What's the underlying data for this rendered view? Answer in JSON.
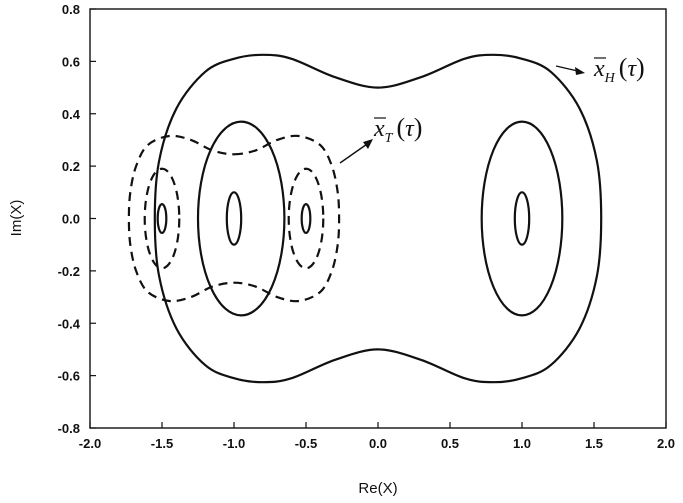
{
  "chart_data": {
    "type": "line",
    "xlabel": "Re(X)",
    "ylabel": "Im(X)",
    "xlim": [
      -2.0,
      2.0
    ],
    "ylim": [
      -0.8,
      0.8
    ],
    "x_ticks": [
      "-2.0",
      "-1.5",
      "-1.0",
      "-0.5",
      "0.0",
      "0.5",
      "1.0",
      "1.5",
      "2.0"
    ],
    "y_ticks": [
      "-0.8",
      "-0.6",
      "-0.4",
      "-0.2",
      "0.0",
      "0.2",
      "0.4",
      "0.6",
      "0.8"
    ],
    "grid": false,
    "annotations": [
      {
        "symbol": "x",
        "subscript": "H",
        "argument": "τ",
        "points_to": "outer solid contour"
      },
      {
        "symbol": "x",
        "subscript": "T",
        "argument": "τ",
        "points_to": "dashed contour near -0.5"
      }
    ],
    "series": [
      {
        "style": "solid",
        "contours": [
          {
            "kind": "ellipse",
            "center": [
              -1.0,
              0.0
            ],
            "rx": 0.05,
            "ry": 0.1
          },
          {
            "kind": "ellipse",
            "center": [
              -1.5,
              0.0
            ],
            "rx": 0.03,
            "ry": 0.055
          },
          {
            "kind": "ellipse",
            "center": [
              -0.5,
              0.0
            ],
            "rx": 0.03,
            "ry": 0.055
          },
          {
            "kind": "ellipse",
            "center": [
              1.0,
              0.0
            ],
            "rx": 0.05,
            "ry": 0.1
          },
          {
            "kind": "ellipse",
            "center": [
              1.0,
              0.0
            ],
            "rx": 0.28,
            "ry": 0.37
          },
          {
            "kind": "ellipse",
            "center": [
              -0.95,
              0.0
            ],
            "rx": 0.3,
            "ry": 0.37
          },
          {
            "kind": "polyline",
            "points": [
              [
                0.0,
                0.5
              ],
              [
                0.3,
                0.54
              ],
              [
                0.6,
                0.61
              ],
              [
                0.8,
                0.625
              ],
              [
                1.0,
                0.61
              ],
              [
                1.2,
                0.56
              ],
              [
                1.4,
                0.42
              ],
              [
                1.52,
                0.22
              ],
              [
                1.55,
                0.0
              ],
              [
                1.52,
                -0.22
              ],
              [
                1.4,
                -0.42
              ],
              [
                1.2,
                -0.56
              ],
              [
                1.0,
                -0.61
              ],
              [
                0.8,
                -0.625
              ],
              [
                0.6,
                -0.61
              ],
              [
                0.3,
                -0.54
              ],
              [
                0.0,
                -0.5
              ],
              [
                -0.3,
                -0.54
              ],
              [
                -0.6,
                -0.61
              ],
              [
                -0.8,
                -0.625
              ],
              [
                -1.0,
                -0.61
              ],
              [
                -1.2,
                -0.56
              ],
              [
                -1.4,
                -0.42
              ],
              [
                -1.52,
                -0.22
              ],
              [
                -1.55,
                0.0
              ],
              [
                -1.52,
                0.22
              ],
              [
                -1.4,
                0.42
              ],
              [
                -1.2,
                0.56
              ],
              [
                -1.0,
                0.61
              ],
              [
                -0.8,
                0.625
              ],
              [
                -0.6,
                0.61
              ],
              [
                -0.3,
                0.54
              ],
              [
                0.0,
                0.5
              ]
            ]
          }
        ]
      },
      {
        "style": "dashed",
        "contours": [
          {
            "kind": "ellipse",
            "center": [
              -1.5,
              0.0
            ],
            "rx": 0.12,
            "ry": 0.19
          },
          {
            "kind": "ellipse",
            "center": [
              -0.5,
              0.0
            ],
            "rx": 0.12,
            "ry": 0.19
          },
          {
            "kind": "polyline",
            "points": [
              [
                -1.0,
                0.245
              ],
              [
                -0.85,
                0.26
              ],
              [
                -0.7,
                0.3
              ],
              [
                -0.55,
                0.315
              ],
              [
                -0.4,
                0.28
              ],
              [
                -0.32,
                0.2
              ],
              [
                -0.28,
                0.1
              ],
              [
                -0.27,
                0.0
              ],
              [
                -0.28,
                -0.1
              ],
              [
                -0.32,
                -0.2
              ],
              [
                -0.4,
                -0.28
              ],
              [
                -0.55,
                -0.315
              ],
              [
                -0.7,
                -0.3
              ],
              [
                -0.85,
                -0.26
              ],
              [
                -1.0,
                -0.245
              ],
              [
                -1.15,
                -0.26
              ],
              [
                -1.3,
                -0.3
              ],
              [
                -1.45,
                -0.315
              ],
              [
                -1.6,
                -0.28
              ],
              [
                -1.68,
                -0.2
              ],
              [
                -1.72,
                -0.1
              ],
              [
                -1.73,
                0.0
              ],
              [
                -1.72,
                0.1
              ],
              [
                -1.68,
                0.2
              ],
              [
                -1.6,
                0.28
              ],
              [
                -1.45,
                0.315
              ],
              [
                -1.3,
                0.3
              ],
              [
                -1.15,
                0.26
              ],
              [
                -1.0,
                0.245
              ]
            ]
          }
        ]
      }
    ]
  }
}
